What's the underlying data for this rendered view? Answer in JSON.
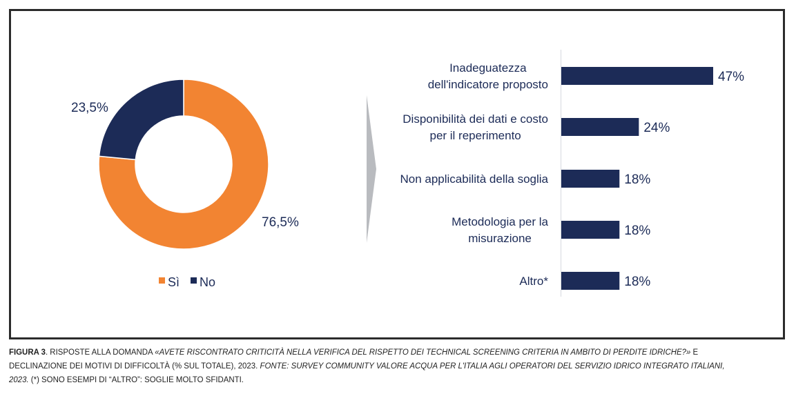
{
  "colors": {
    "orange": "#f28432",
    "navy": "#1c2b57",
    "arrow": "#b9bbbf",
    "axis": "#d6d9df",
    "text": "#1c2b57"
  },
  "chart_data": [
    {
      "type": "pie",
      "variant": "donut",
      "slices": [
        {
          "label": "Sì",
          "value": 76.5,
          "display": "76,5%",
          "color": "#f28432"
        },
        {
          "label": "No",
          "value": 23.5,
          "display": "23,5%",
          "color": "#1c2b57"
        }
      ],
      "legend": {
        "placement": "bottom",
        "entries": [
          "Sì",
          "No"
        ]
      },
      "title": ""
    },
    {
      "type": "bar",
      "orientation": "horizontal",
      "categories": [
        [
          "Inadeguatezza",
          "dell'indicatore proposto"
        ],
        [
          "Disponibilità dei dati e costo",
          "per il reperimento"
        ],
        [
          "Non applicabilità della soglia"
        ],
        [
          "Metodologia per la",
          "misurazione"
        ],
        [
          "Altro*"
        ]
      ],
      "values": [
        47,
        24,
        18,
        18,
        18
      ],
      "value_labels": [
        "47%",
        "24%",
        "18%",
        "18%",
        "18%"
      ],
      "unit": "%",
      "xlim": [
        0,
        50
      ],
      "color": "#1c2b57",
      "grid": false,
      "title": ""
    }
  ],
  "caption": {
    "figure_label": "FIGURA 3",
    "part1": ". RISPOSTE ALLA DOMANDA ",
    "question": "«AVETE RISCONTRATO CRITICITÀ NELLA VERIFICA DEL RISPETTO DEI TECHNICAL SCREENING CRITERIA IN AMBITO DI PERDITE IDRICHE?»",
    "part2": " E DECLINAZIONE DEI MOTIVI DI DIFFICOLTÀ (% SUL TOTALE), 2023. ",
    "source": "FONTE: SURVEY COMMUNITY VALORE ACQUA PER L'ITALIA AGLI OPERATORI DEL SERVIZIO IDRICO INTEGRATO ITALIANI, 2023.",
    "note": " (*) SONO ESEMPI DI “ALTRO”: SOGLIE MOLTO SFIDANTI."
  }
}
